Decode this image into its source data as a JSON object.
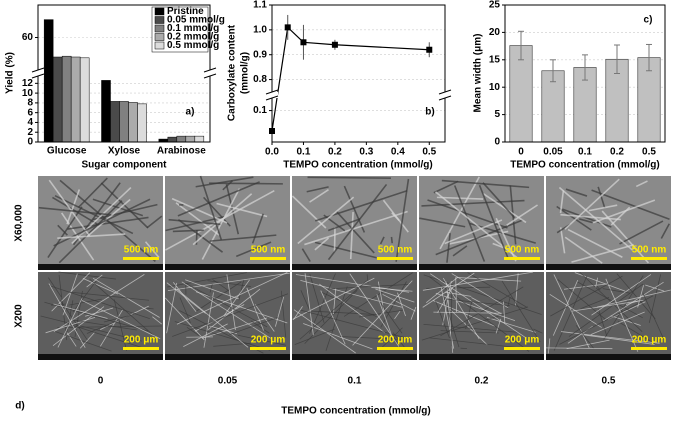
{
  "chart_data": [
    {
      "type": "grouped-bar",
      "panel_label": "a)",
      "ylabel": "Yield (%)",
      "xlabel": "Sugar component",
      "categories": [
        "Glucose",
        "Xylose",
        "Arabinose"
      ],
      "series": [
        {
          "name": "Pristine",
          "color": "#000000",
          "values": [
            71,
            12.6,
            0.6
          ]
        },
        {
          "name": "0.05 mmol/g",
          "color": "#4a4a4a",
          "values": [
            48,
            8.3,
            1.0
          ]
        },
        {
          "name": "0.1 mmol/g",
          "color": "#808080",
          "values": [
            48.5,
            8.3,
            1.2
          ]
        },
        {
          "name": "0.2 mmol/g",
          "color": "#ababab",
          "values": [
            48,
            8.1,
            1.2
          ]
        },
        {
          "name": "0.5 mmol/g",
          "color": "#dcdcdc",
          "values": [
            47.5,
            7.8,
            1.2
          ]
        }
      ],
      "y_segments": [
        {
          "ylim": [
            0,
            13.5
          ],
          "yticks": [
            0,
            2,
            4,
            6,
            8,
            10,
            12
          ]
        },
        {
          "ylim": [
            40,
            80
          ],
          "yticks": [
            60
          ]
        }
      ],
      "grid": true,
      "legend": "top-right"
    },
    {
      "type": "line",
      "panel_label": "b)",
      "ylabel": [
        "Carboxylate content",
        "(mmol/g)"
      ],
      "xlabel": "TEMPO concentration (mmol/g)",
      "x": [
        0,
        0.05,
        0.1,
        0.2,
        0.5
      ],
      "values": [
        0.035,
        1.01,
        0.95,
        0.94,
        0.92
      ],
      "error": [
        0.005,
        0.05,
        0.07,
        0.02,
        0.03
      ],
      "color": "#000000",
      "xlim": [
        0,
        0.55
      ],
      "xticks": [
        {
          "value": 0,
          "label": "0.0"
        },
        0.1,
        0.2,
        0.3,
        0.4,
        0.5
      ],
      "y_segments": [
        {
          "ylim": [
            0,
            0.14
          ],
          "yticks": [
            0.1
          ]
        },
        {
          "ylim": [
            0.75,
            1.1
          ],
          "yticks": [
            0.8,
            0.9,
            {
              "value": 1,
              "label": "1.0"
            },
            1.1
          ]
        }
      ],
      "grid": true
    },
    {
      "type": "bar",
      "panel_label": "c)",
      "ylabel": "Mean width (μm)",
      "xlabel": "TEMPO concentration (mmol/g)",
      "categories": [
        "0",
        "0.05",
        "0.1",
        "0.2",
        "0.5"
      ],
      "values": [
        17.6,
        13.0,
        13.6,
        15.1,
        15.4
      ],
      "error": [
        2.6,
        2.0,
        2.3,
        2.6,
        2.4
      ],
      "color": "#c0c0c0",
      "ylim": [
        0,
        25
      ],
      "yticks": [
        0,
        5,
        10,
        15,
        20,
        25
      ],
      "grid": true
    }
  ],
  "micrographs": {
    "panel_label": "d)",
    "xlabel": "TEMPO concentration (mmol/g)",
    "columns": [
      "0",
      "0.05",
      "0.1",
      "0.2",
      "0.5"
    ],
    "rows": [
      {
        "label": "X60,000",
        "scale_bar": "500 nm"
      },
      {
        "label": "X200",
        "scale_bar": "200 μm"
      }
    ]
  }
}
